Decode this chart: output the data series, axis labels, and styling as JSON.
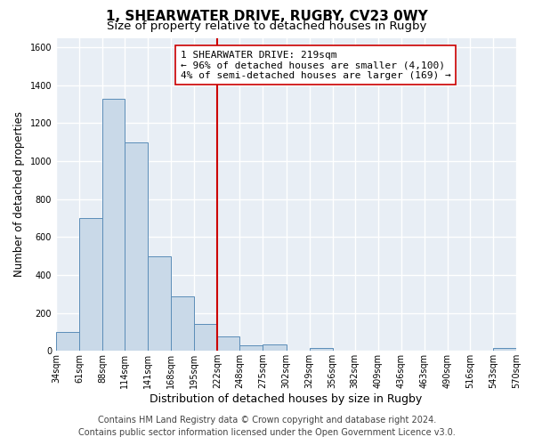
{
  "title": "1, SHEARWATER DRIVE, RUGBY, CV23 0WY",
  "subtitle": "Size of property relative to detached houses in Rugby",
  "xlabel": "Distribution of detached houses by size in Rugby",
  "ylabel": "Number of detached properties",
  "bar_edges": [
    34,
    61,
    88,
    114,
    141,
    168,
    195,
    222,
    248,
    275,
    302,
    329,
    356,
    382,
    409,
    436,
    463,
    490,
    516,
    543,
    570
  ],
  "bar_heights": [
    100,
    700,
    1330,
    1100,
    500,
    285,
    143,
    75,
    30,
    35,
    0,
    17,
    0,
    0,
    0,
    0,
    0,
    0,
    0,
    17
  ],
  "bar_color": "#c9d9e8",
  "bar_edge_color": "#5b8db8",
  "reference_line_x": 222,
  "reference_line_color": "#cc0000",
  "annotation_text_line1": "1 SHEARWATER DRIVE: 219sqm",
  "annotation_text_line2": "← 96% of detached houses are smaller (4,100)",
  "annotation_text_line3": "4% of semi-detached houses are larger (169) →",
  "annotation_box_facecolor": "#ffffff",
  "annotation_box_edgecolor": "#cc0000",
  "ylim": [
    0,
    1650
  ],
  "yticks": [
    0,
    200,
    400,
    600,
    800,
    1000,
    1200,
    1400,
    1600
  ],
  "tick_labels": [
    "34sqm",
    "61sqm",
    "88sqm",
    "114sqm",
    "141sqm",
    "168sqm",
    "195sqm",
    "222sqm",
    "248sqm",
    "275sqm",
    "302sqm",
    "329sqm",
    "356sqm",
    "382sqm",
    "409sqm",
    "436sqm",
    "463sqm",
    "490sqm",
    "516sqm",
    "543sqm",
    "570sqm"
  ],
  "footer_line1": "Contains HM Land Registry data © Crown copyright and database right 2024.",
  "footer_line2": "Contains public sector information licensed under the Open Government Licence v3.0.",
  "bg_color": "#ffffff",
  "plot_bg_color": "#e8eef5",
  "grid_color": "#ffffff",
  "title_fontsize": 11,
  "subtitle_fontsize": 9.5,
  "xlabel_fontsize": 9,
  "ylabel_fontsize": 8.5,
  "annotation_fontsize": 8,
  "tick_fontsize": 7,
  "footer_fontsize": 7
}
